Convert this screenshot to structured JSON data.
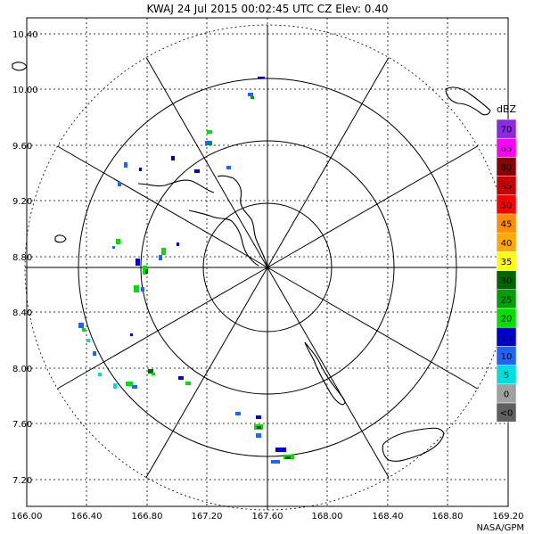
{
  "header": {
    "station": "KWAJ",
    "date": "24 Jul 2015",
    "time": "00:02:45 UTC",
    "product": "CZ",
    "elevation": "Elev: 0.40"
  },
  "axes": {
    "lat_labels": [
      "10.40",
      "10.00",
      "9.60",
      "9.20",
      "8.80",
      "8.40",
      "8.00",
      "7.60",
      "7.20"
    ],
    "lon_labels": [
      "166.00",
      "166.40",
      "166.80",
      "167.20",
      "167.60",
      "168.00",
      "168.40",
      "168.80",
      "169.20"
    ]
  },
  "legend": {
    "title": "dBZ",
    "items": [
      {
        "label": "70",
        "color": "#8a2be2"
      },
      {
        "label": "65",
        "color": "#ff00ff"
      },
      {
        "label": "60",
        "color": "#8b0000"
      },
      {
        "label": "55",
        "color": "#c80000"
      },
      {
        "label": "50",
        "color": "#ff0000"
      },
      {
        "label": "45",
        "color": "#ff8c00"
      },
      {
        "label": "40",
        "color": "#ffaa00"
      },
      {
        "label": "35",
        "color": "#ffff00"
      },
      {
        "label": "30",
        "color": "#006400"
      },
      {
        "label": "25",
        "color": "#00a000"
      },
      {
        "label": "20",
        "color": "#00e000"
      },
      {
        "label": "15",
        "color": "#0000cc"
      },
      {
        "label": "10",
        "color": "#1e64ff"
      },
      {
        "label": "5",
        "color": "#00dddd"
      },
      {
        "label": "0",
        "color": "#a0a0a0"
      },
      {
        "label": "<0",
        "color": "#606060"
      }
    ]
  },
  "credit": "NASA/GPM"
}
